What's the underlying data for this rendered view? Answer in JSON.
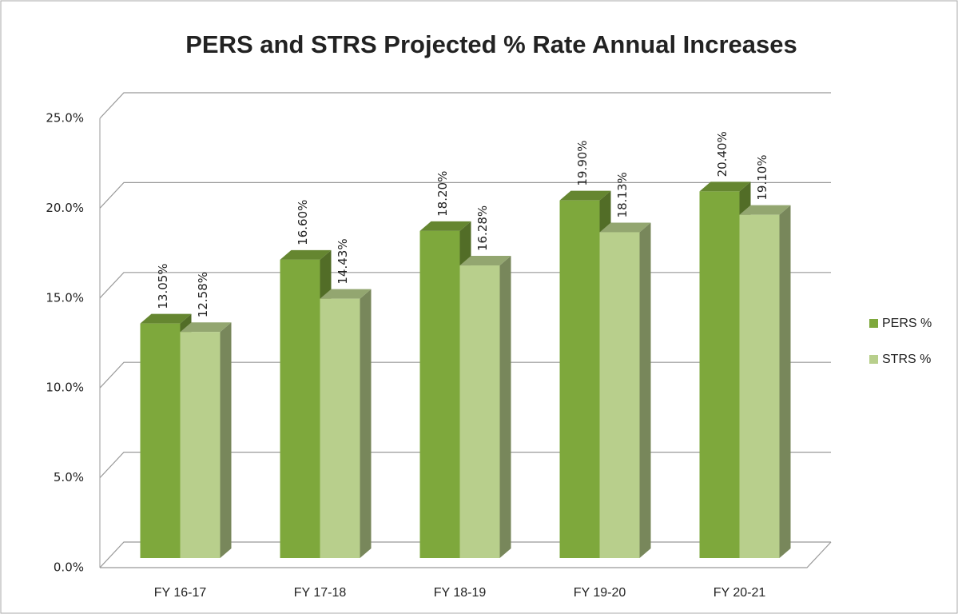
{
  "chart_data": {
    "type": "bar",
    "title": "PERS and STRS Projected % Rate Annual Increases",
    "categories": [
      "FY 16-17",
      "FY 17-18",
      "FY 18-19",
      "FY 19-20",
      "FY 20-21"
    ],
    "series": [
      {
        "name": "PERS %",
        "color": "#7ea83c",
        "values": [
          13.05,
          16.6,
          18.2,
          19.9,
          20.4
        ],
        "value_labels": [
          "13.05%",
          "16.60%",
          "18.20%",
          "19.90%",
          "20.40%"
        ]
      },
      {
        "name": "STRS %",
        "color": "#b8cf8c",
        "values": [
          12.58,
          14.43,
          16.28,
          18.13,
          19.1
        ],
        "value_labels": [
          "12.58%",
          "14.43%",
          "16.28%",
          "18.13%",
          "19.10%"
        ]
      }
    ],
    "ylim": [
      0,
      25
    ],
    "yticks": [
      {
        "value": 0,
        "label": "0.0%"
      },
      {
        "value": 5,
        "label": "5.0%"
      },
      {
        "value": 10,
        "label": "10.0%"
      },
      {
        "value": 15,
        "label": "15.0%"
      },
      {
        "value": 20,
        "label": "20.0%"
      },
      {
        "value": 25,
        "label": "25.0%"
      }
    ],
    "grid": true,
    "legend": "right"
  }
}
